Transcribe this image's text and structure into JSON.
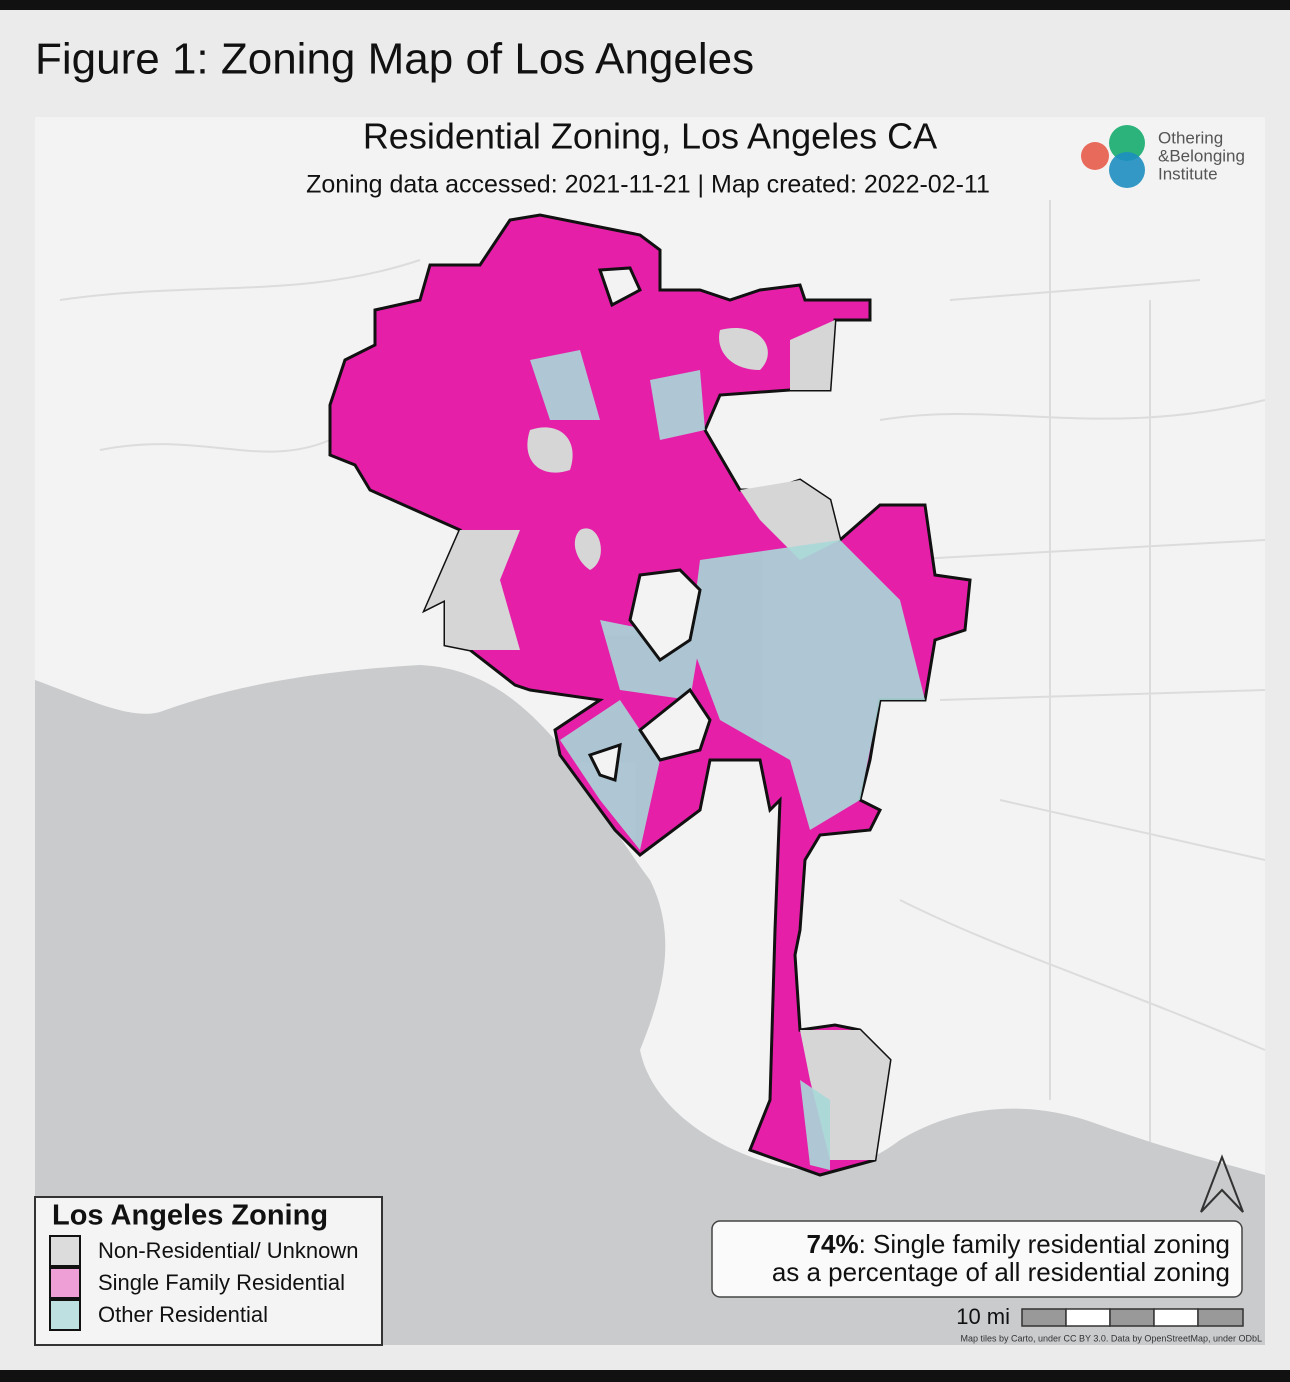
{
  "figure_title": "Figure 1: Zoning Map of Los Angeles",
  "map": {
    "title": "Residential Zoning, Los Angeles CA",
    "subtitle": "Zoning data accessed: 2021-11-21 | Map created: 2022-02-11",
    "logo": [
      "Othering",
      "&Belonging",
      "Institute"
    ],
    "legend": {
      "title": "Los Angeles Zoning",
      "items": [
        {
          "label": "Non-Residential/ Unknown",
          "color": "#dcdcdc"
        },
        {
          "label": "Single Family Residential",
          "color": "#ee9fd6"
        },
        {
          "label": "Other Residential",
          "color": "#bfe0e0"
        }
      ]
    },
    "callout": {
      "highlight": "74%",
      "line_1": ": Single family residential zoning",
      "line_2": "as a percentage of all residential zoning"
    },
    "scale_bar": "10 mi",
    "attribution": "Map tiles by Carto, under CC BY 3.0. Data by OpenStreetMap, under ODbL"
  }
}
